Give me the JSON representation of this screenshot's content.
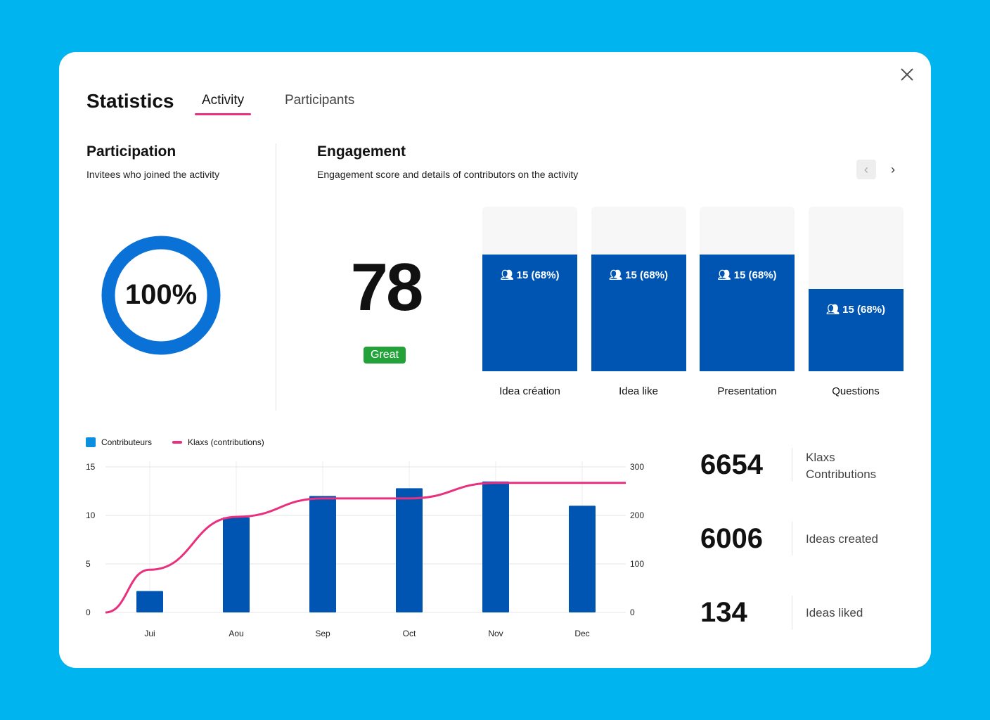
{
  "header": {
    "title": "Statistics",
    "tabs": [
      {
        "label": "Activity",
        "active": true
      },
      {
        "label": "Participants",
        "active": false
      }
    ]
  },
  "participation": {
    "title": "Participation",
    "subtitle": "Invitees who joined the activity",
    "value": "100%",
    "fraction": 1.0,
    "color": "#0a72d6"
  },
  "engagement": {
    "title": "Engagement",
    "subtitle": "Engagement score and details of contributors on the activity",
    "score": "78",
    "rating": "Great",
    "columns": [
      {
        "label": "Idea création",
        "value": "15 (68%)",
        "level": 0.71
      },
      {
        "label": "Idea like",
        "value": "15 (68%)",
        "level": 0.71
      },
      {
        "label": "Presentation",
        "value": "15 (68%)",
        "level": 0.71
      },
      {
        "label": "Questions",
        "value": "15 (68%)",
        "level": 0.5
      }
    ]
  },
  "chart_data": {
    "type": "bar+line",
    "categories": [
      "Jui",
      "Aou",
      "Sep",
      "Oct",
      "Nov",
      "Dec"
    ],
    "series": [
      {
        "name": "Contributeurs",
        "type": "bar",
        "axis": "left",
        "color": "#0055b3",
        "values": [
          2.2,
          9.8,
          12,
          12.8,
          13.5,
          11
        ]
      },
      {
        "name": "Klaxs (contributions)",
        "type": "line",
        "axis": "right",
        "color": "#e8307f",
        "values": [
          88,
          197,
          235,
          235,
          267,
          267
        ]
      }
    ],
    "left_axis": {
      "range": [
        0,
        15
      ],
      "ticks": [
        "0",
        "5",
        "10",
        "15"
      ]
    },
    "right_axis": {
      "range": [
        0,
        300
      ],
      "ticks": [
        "0",
        "100",
        "200",
        "300"
      ]
    },
    "grid": true,
    "legend": "top-left"
  },
  "stats": [
    {
      "value": "6654",
      "label": "Klaxs Contributions"
    },
    {
      "value": "6006",
      "label": "Ideas created"
    },
    {
      "value": "134",
      "label": "Ideas liked"
    }
  ]
}
